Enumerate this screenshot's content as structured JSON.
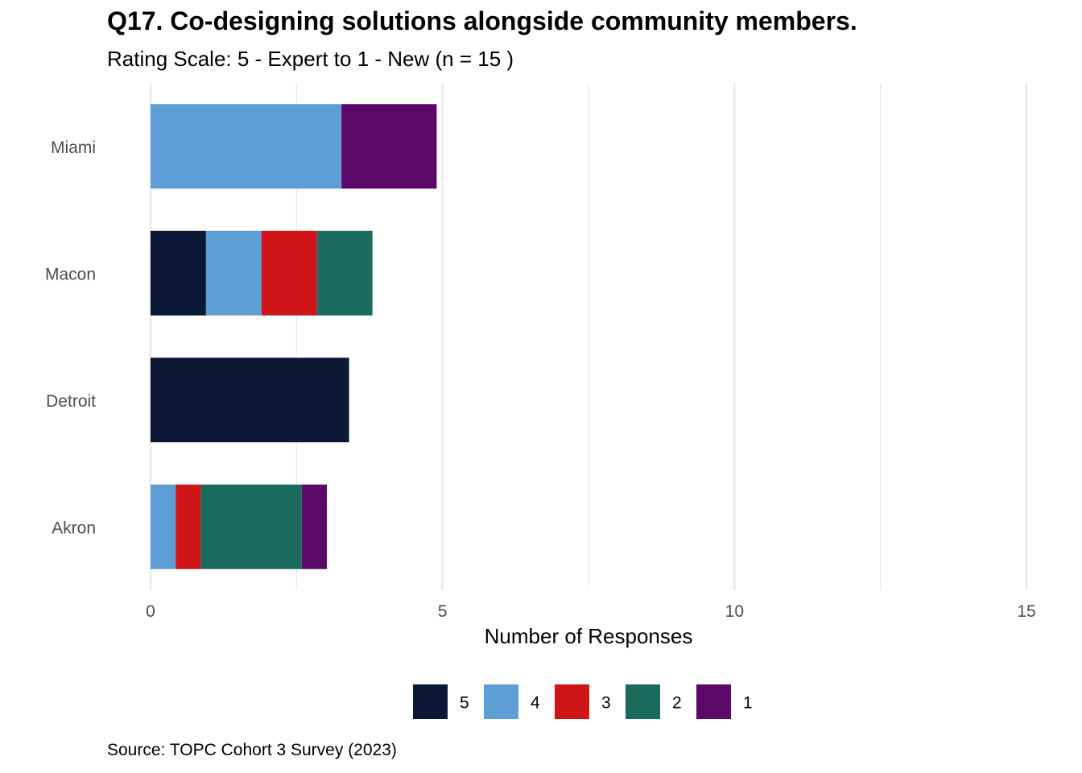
{
  "chart_data": {
    "type": "bar",
    "orientation": "horizontal",
    "stacked": true,
    "title": "Q17. Co-designing solutions alongside community members.",
    "subtitle": "Rating Scale: 5 - Expert to 1 - New (n = 15 )",
    "xlabel": "Number of Responses",
    "ylabel": "",
    "xlim": [
      0,
      15
    ],
    "xticks": [
      0,
      5,
      10,
      15
    ],
    "grid": true,
    "legend_position": "bottom",
    "source": "Source: TOPC Cohort 3 Survey (2023)",
    "categories": [
      "Akron",
      "Detroit",
      "Macon",
      "Miami"
    ],
    "series": [
      {
        "name": "5",
        "color": "#0a1836",
        "values": [
          0,
          3.4,
          0.95,
          0
        ]
      },
      {
        "name": "4",
        "color": "#5e9ed6",
        "values": [
          0.43,
          0,
          0.95,
          3.27
        ]
      },
      {
        "name": "3",
        "color": "#d01519",
        "values": [
          0.43,
          0,
          0.95,
          0
        ]
      },
      {
        "name": "2",
        "color": "#1a6a5e",
        "values": [
          1.73,
          0,
          0.95,
          0
        ]
      },
      {
        "name": "1",
        "color": "#5c0869",
        "values": [
          0.43,
          0,
          0,
          1.63
        ]
      }
    ]
  }
}
